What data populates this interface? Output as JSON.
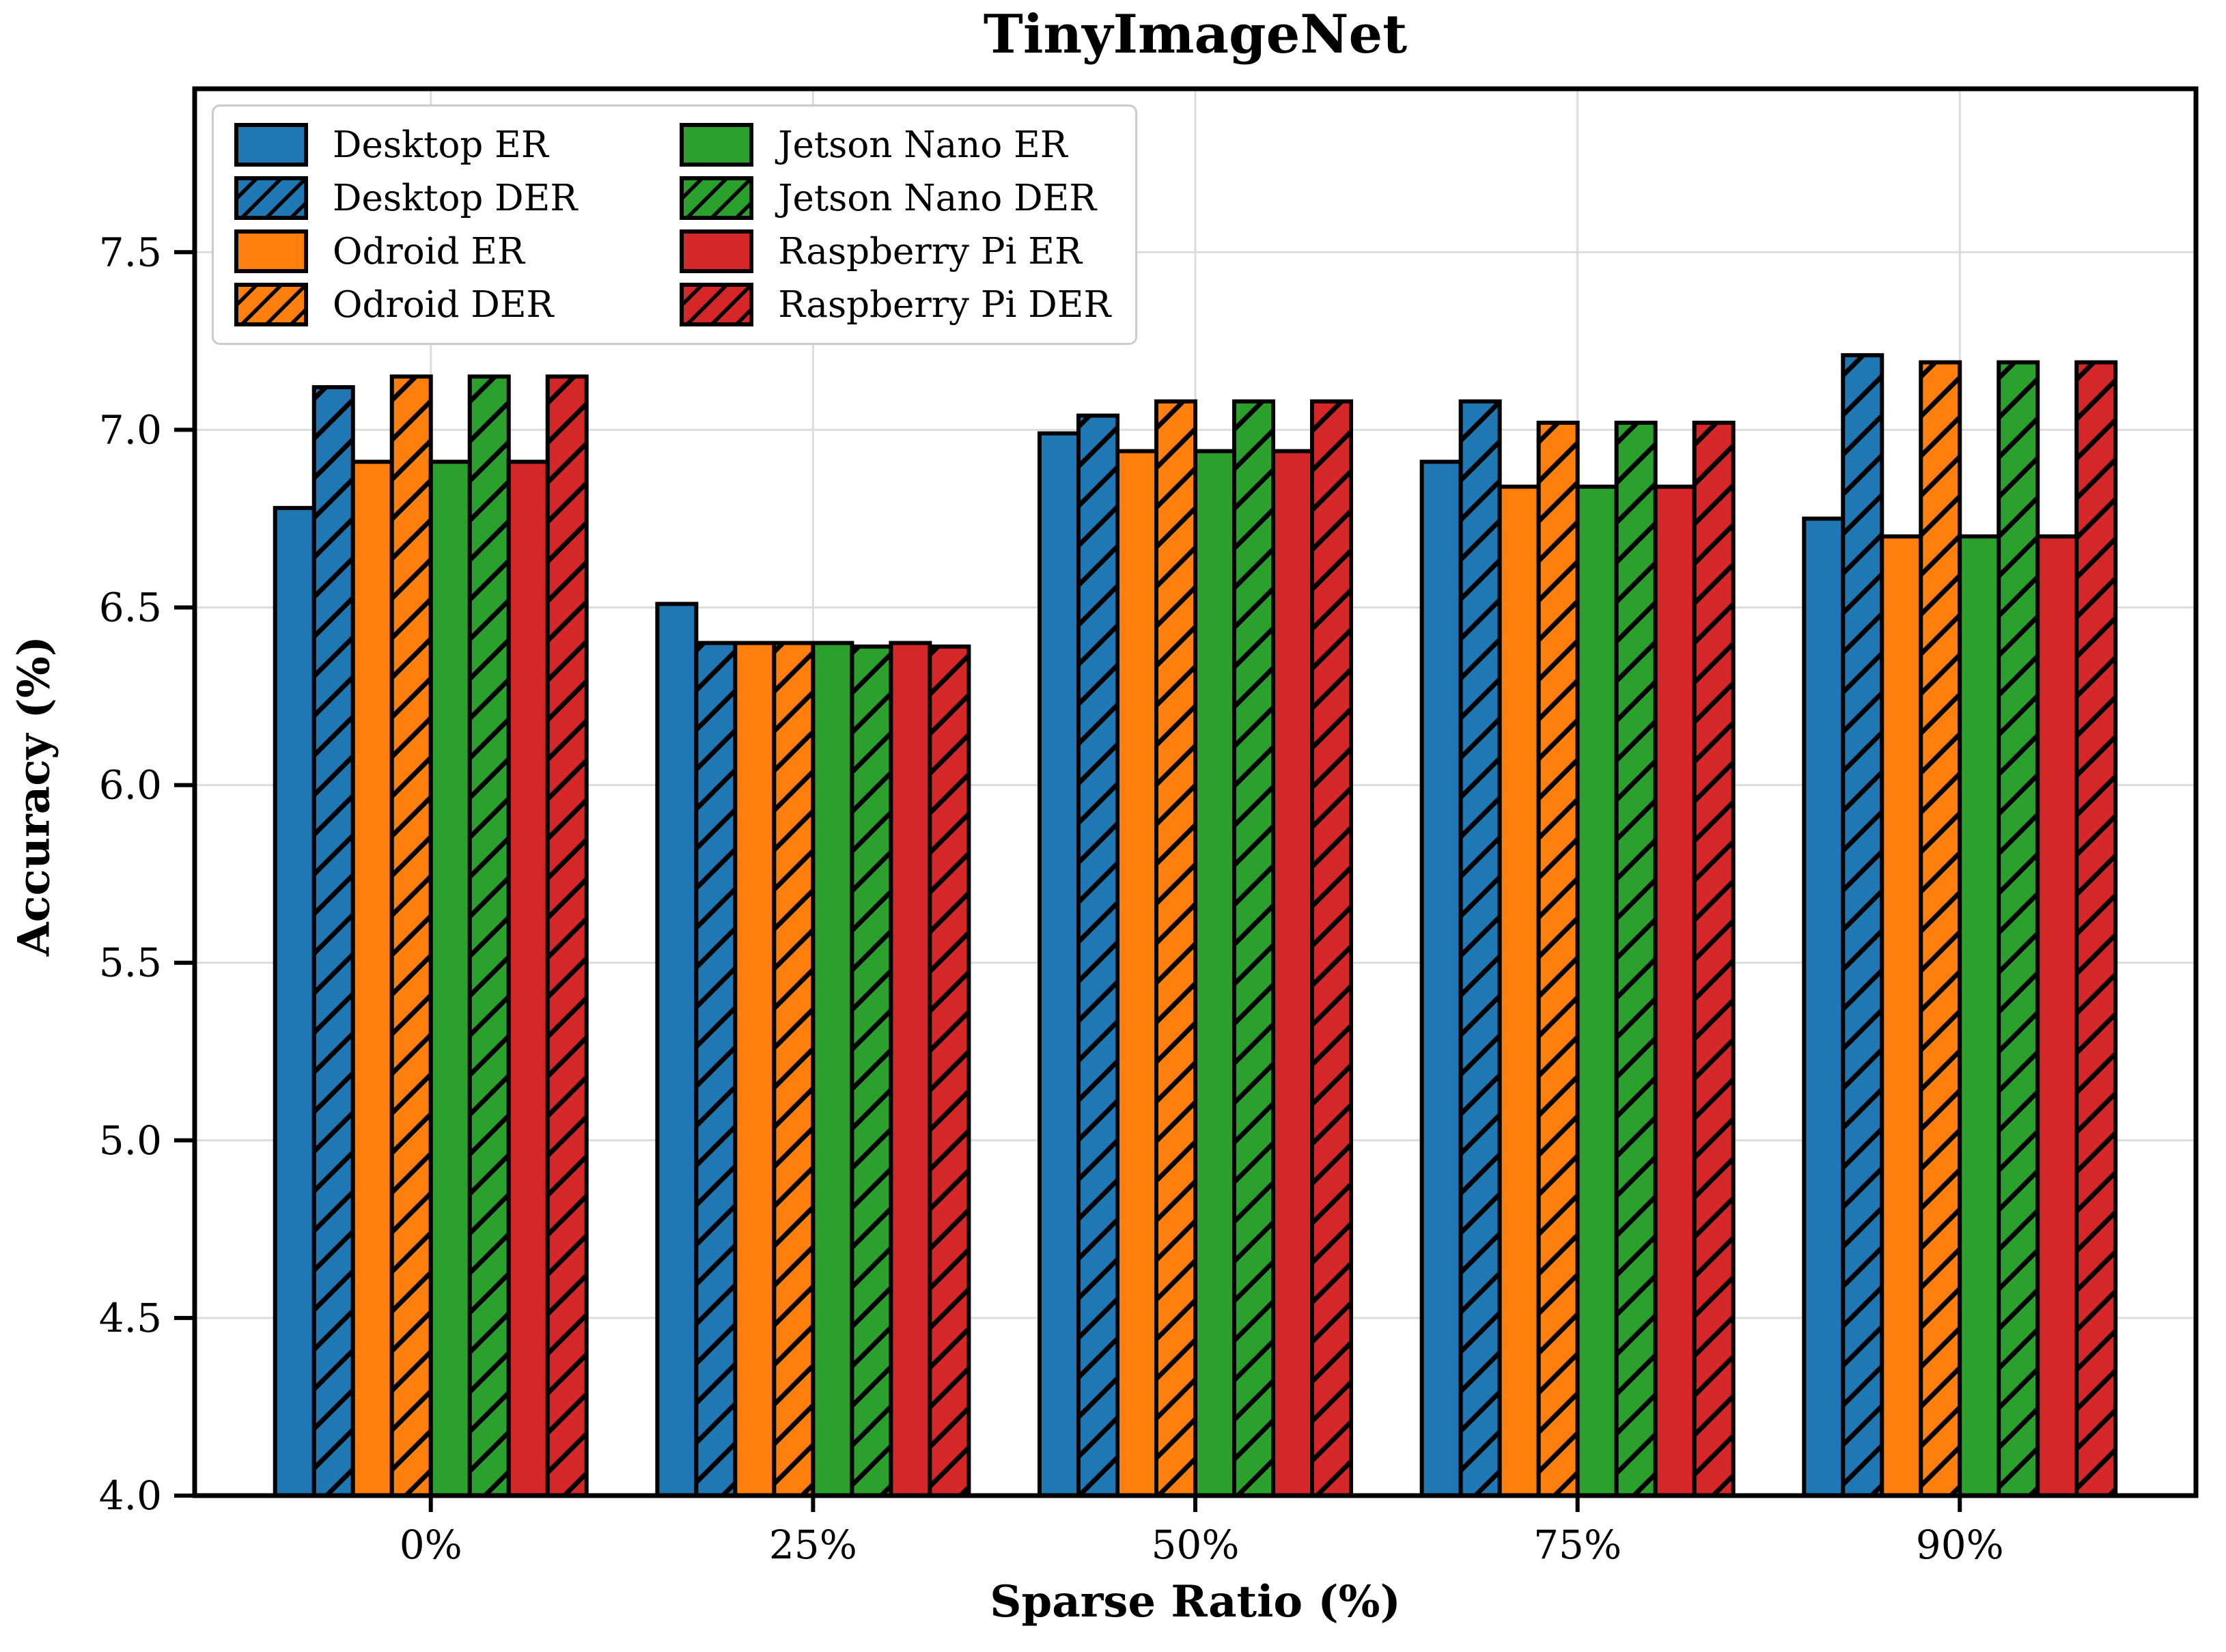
{
  "chart_data": {
    "type": "bar",
    "title": "TinyImageNet",
    "xlabel": "Sparse Ratio (%)",
    "ylabel": "Accuracy (%)",
    "categories": [
      "0%",
      "25%",
      "50%",
      "75%",
      "90%"
    ],
    "ylim": [
      4.0,
      7.96
    ],
    "yticks": [
      "4.0",
      "4.5",
      "5.0",
      "5.5",
      "6.0",
      "6.5",
      "7.0",
      "7.5"
    ],
    "grid": true,
    "bar_edge_color": "#000000",
    "grid_color": "#dcdcdc",
    "legend_position": "upper left",
    "legend_columns": 2,
    "legend_order_column_major": true,
    "series": [
      {
        "name": "Desktop ER",
        "color": "#1f77b4",
        "hatch": false,
        "values": [
          6.78,
          6.51,
          6.99,
          6.91,
          6.75
        ]
      },
      {
        "name": "Desktop DER",
        "color": "#1f77b4",
        "hatch": true,
        "values": [
          7.12,
          6.4,
          7.04,
          7.08,
          7.21
        ]
      },
      {
        "name": "Odroid ER",
        "color": "#ff7f0e",
        "hatch": false,
        "values": [
          6.91,
          6.4,
          6.94,
          6.84,
          6.7
        ]
      },
      {
        "name": "Odroid DER",
        "color": "#ff7f0e",
        "hatch": true,
        "values": [
          7.15,
          6.4,
          7.08,
          7.02,
          7.19
        ]
      },
      {
        "name": "Jetson Nano ER",
        "color": "#2ca02c",
        "hatch": false,
        "values": [
          6.91,
          6.4,
          6.94,
          6.84,
          6.7
        ]
      },
      {
        "name": "Jetson Nano DER",
        "color": "#2ca02c",
        "hatch": true,
        "values": [
          7.15,
          6.39,
          7.08,
          7.02,
          7.19
        ]
      },
      {
        "name": "Raspberry Pi ER",
        "color": "#d62728",
        "hatch": false,
        "values": [
          6.91,
          6.4,
          6.94,
          6.84,
          6.7
        ]
      },
      {
        "name": "Raspberry Pi DER",
        "color": "#d62728",
        "hatch": true,
        "values": [
          7.15,
          6.39,
          7.08,
          7.02,
          7.19
        ]
      }
    ]
  }
}
